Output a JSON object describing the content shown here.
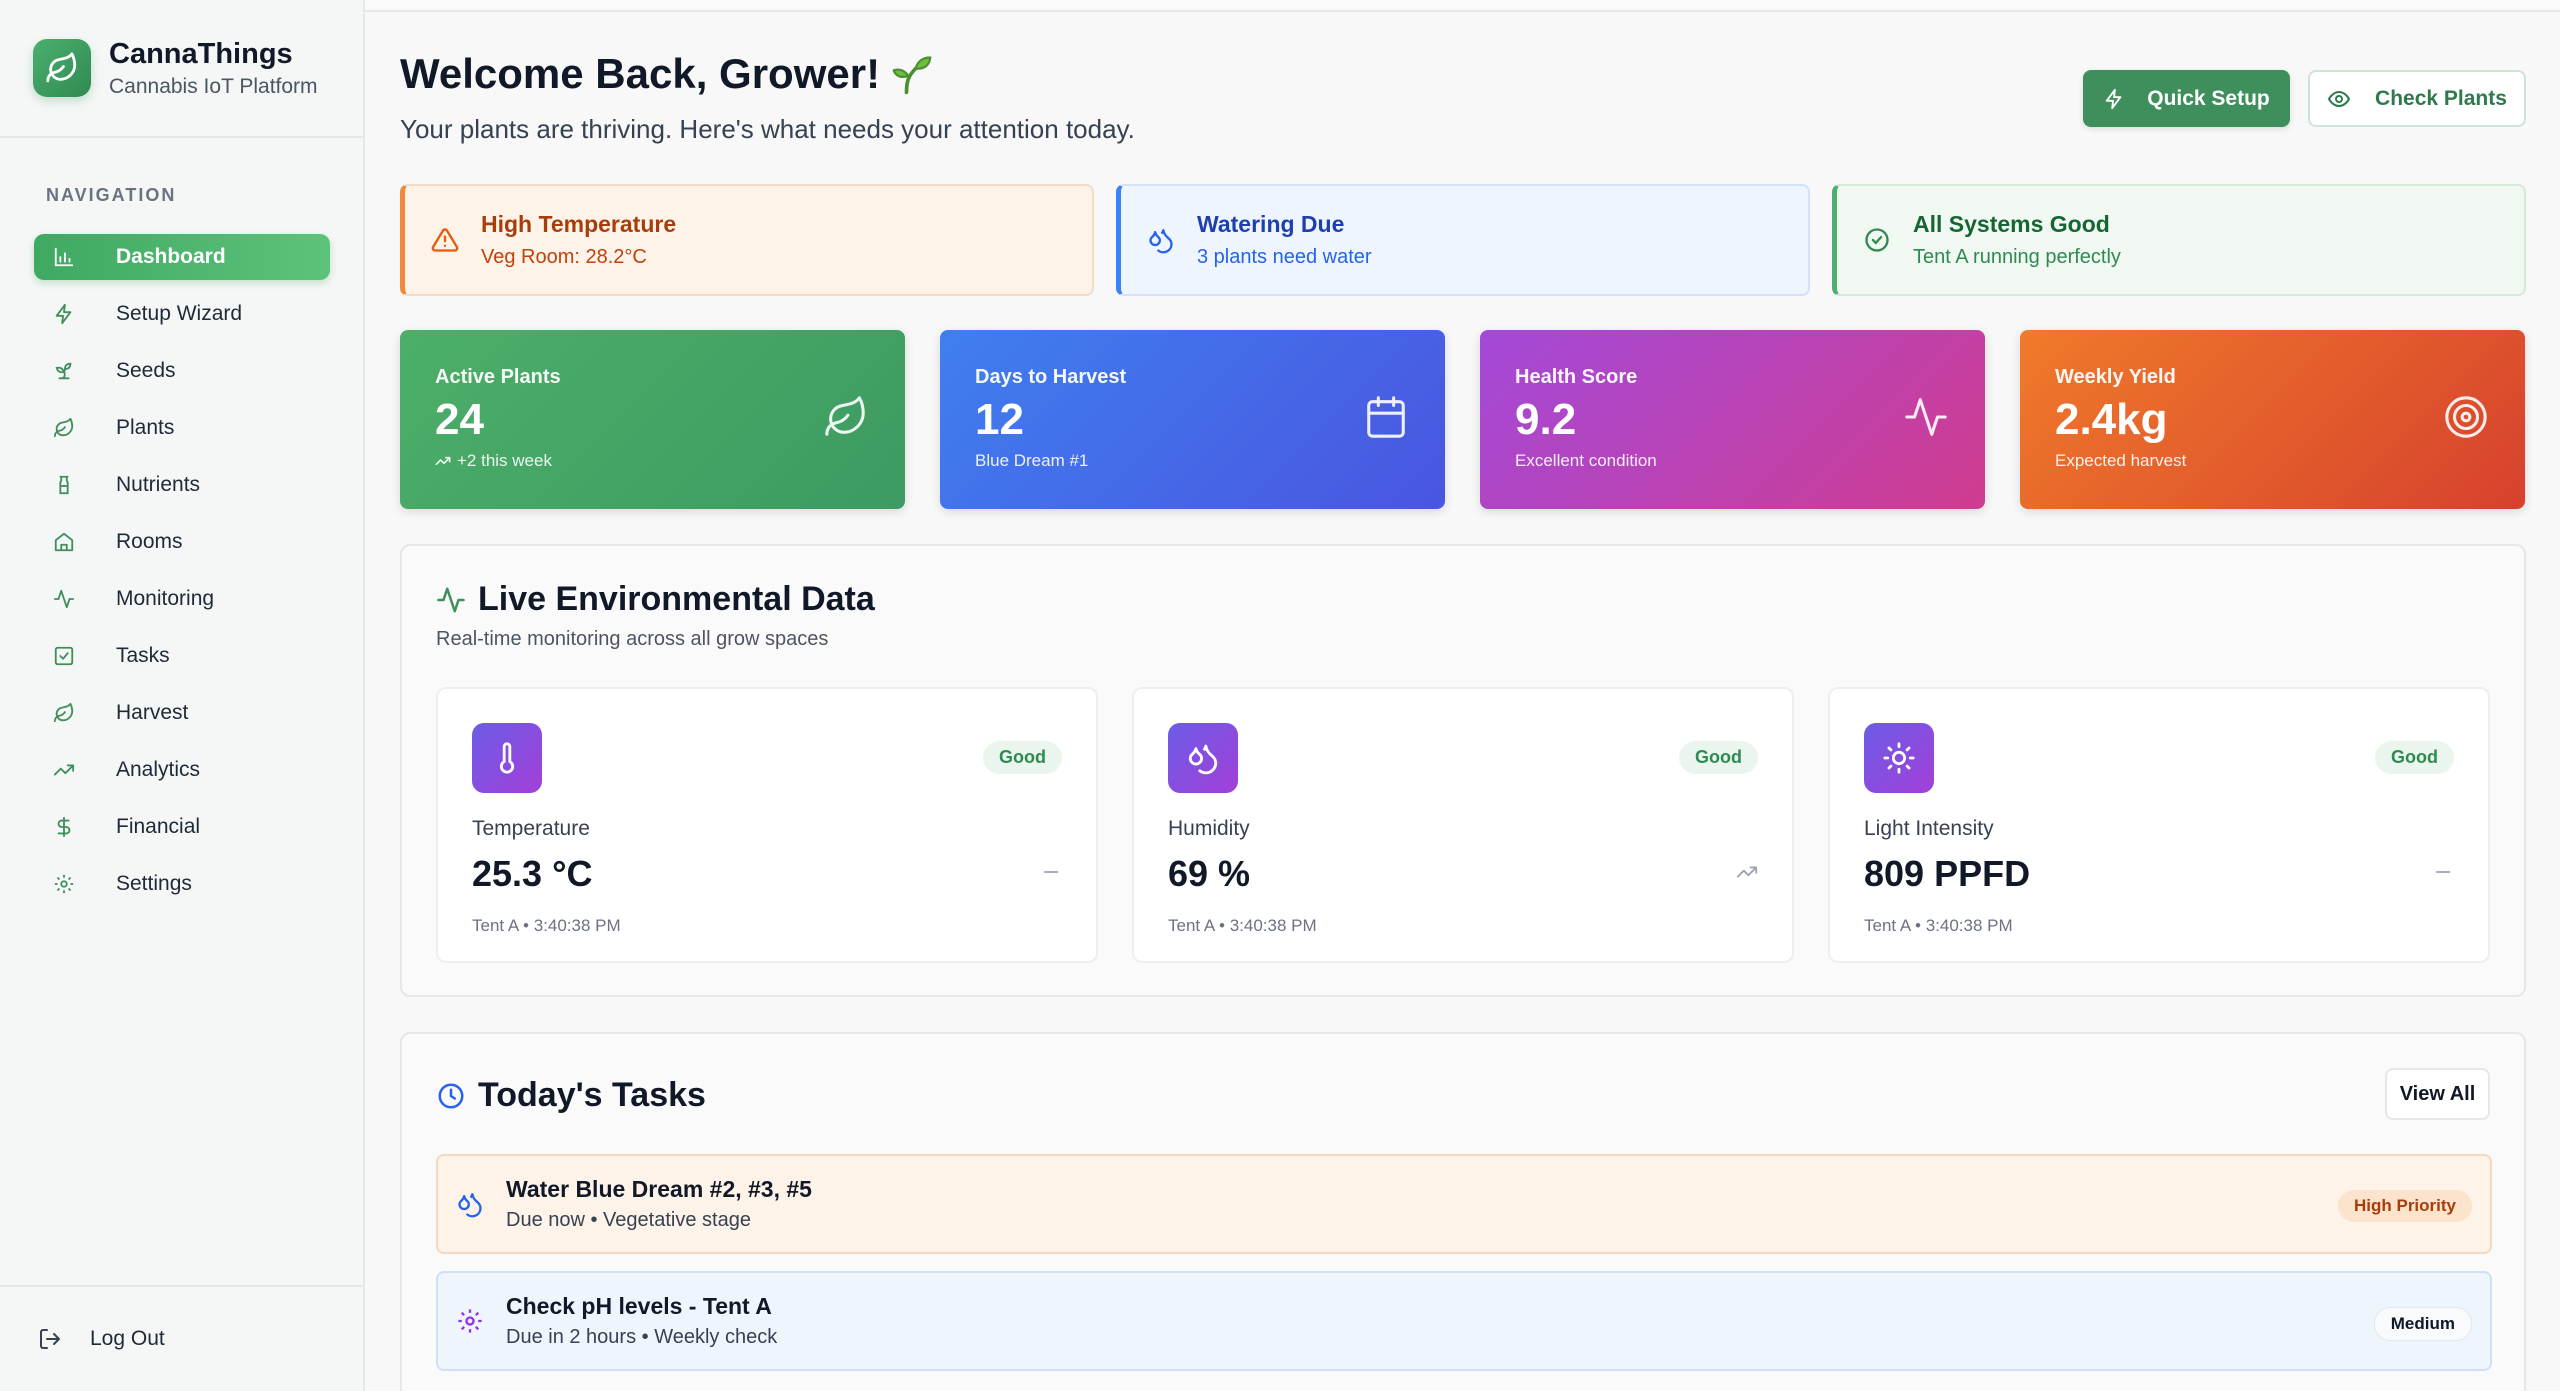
{
  "brand": {
    "title": "CannaThings",
    "subtitle": "Cannabis IoT Platform"
  },
  "nav": {
    "heading": "NAVIGATION",
    "items": [
      {
        "label": "Dashboard",
        "icon": "bar-chart-icon",
        "active": true
      },
      {
        "label": "Setup Wizard",
        "icon": "zap-icon"
      },
      {
        "label": "Seeds",
        "icon": "sprout-icon"
      },
      {
        "label": "Plants",
        "icon": "leaf-icon"
      },
      {
        "label": "Nutrients",
        "icon": "bottle-icon"
      },
      {
        "label": "Rooms",
        "icon": "home-icon"
      },
      {
        "label": "Monitoring",
        "icon": "activity-icon"
      },
      {
        "label": "Tasks",
        "icon": "checkbox-icon"
      },
      {
        "label": "Harvest",
        "icon": "leaf-icon"
      },
      {
        "label": "Analytics",
        "icon": "trending-up-icon"
      },
      {
        "label": "Financial",
        "icon": "dollar-icon"
      },
      {
        "label": "Settings",
        "icon": "gear-icon"
      }
    ],
    "logout": "Log Out"
  },
  "header": {
    "title": "Welcome Back, Grower!",
    "subtitle": "Your plants are thriving. Here's what needs your attention today.",
    "quick_setup": "Quick Setup",
    "check_plants": "Check Plants"
  },
  "alerts": [
    {
      "title": "High Temperature",
      "sub": "Veg Room: 28.2°C"
    },
    {
      "title": "Watering Due",
      "sub": "3 plants need water"
    },
    {
      "title": "All Systems Good",
      "sub": "Tent A running perfectly"
    }
  ],
  "stats": [
    {
      "label": "Active Plants",
      "value": "24",
      "sub": "+2 this week"
    },
    {
      "label": "Days to Harvest",
      "value": "12",
      "sub": "Blue Dream #1"
    },
    {
      "label": "Health Score",
      "value": "9.2",
      "sub": "Excellent condition"
    },
    {
      "label": "Weekly Yield",
      "value": "2.4kg",
      "sub": "Expected harvest"
    }
  ],
  "env": {
    "title": "Live Environmental Data",
    "subtitle": "Real-time monitoring across all grow spaces",
    "metrics": [
      {
        "label": "Temperature",
        "value": "25.3 °C",
        "status": "Good",
        "location": "Tent A • 3:40:38 PM",
        "trend": "flat"
      },
      {
        "label": "Humidity",
        "value": "69 %",
        "status": "Good",
        "location": "Tent A • 3:40:38 PM",
        "trend": "up"
      },
      {
        "label": "Light Intensity",
        "value": "809 PPFD",
        "status": "Good",
        "location": "Tent A • 3:40:38 PM",
        "trend": "flat"
      }
    ]
  },
  "tasks": {
    "title": "Today's Tasks",
    "view_all": "View All",
    "items": [
      {
        "title": "Water Blue Dream #2, #3, #5",
        "sub": "Due now • Vegetative stage",
        "priority": "High Priority"
      },
      {
        "title": "Check pH levels - Tent A",
        "sub": "Due in 2 hours • Weekly check",
        "priority": "Medium"
      }
    ]
  },
  "colors": {
    "primary": "#3f8f5c",
    "accent_green": "#4caf6e",
    "warning": "#ef8a3b",
    "info": "#3b82f6"
  }
}
